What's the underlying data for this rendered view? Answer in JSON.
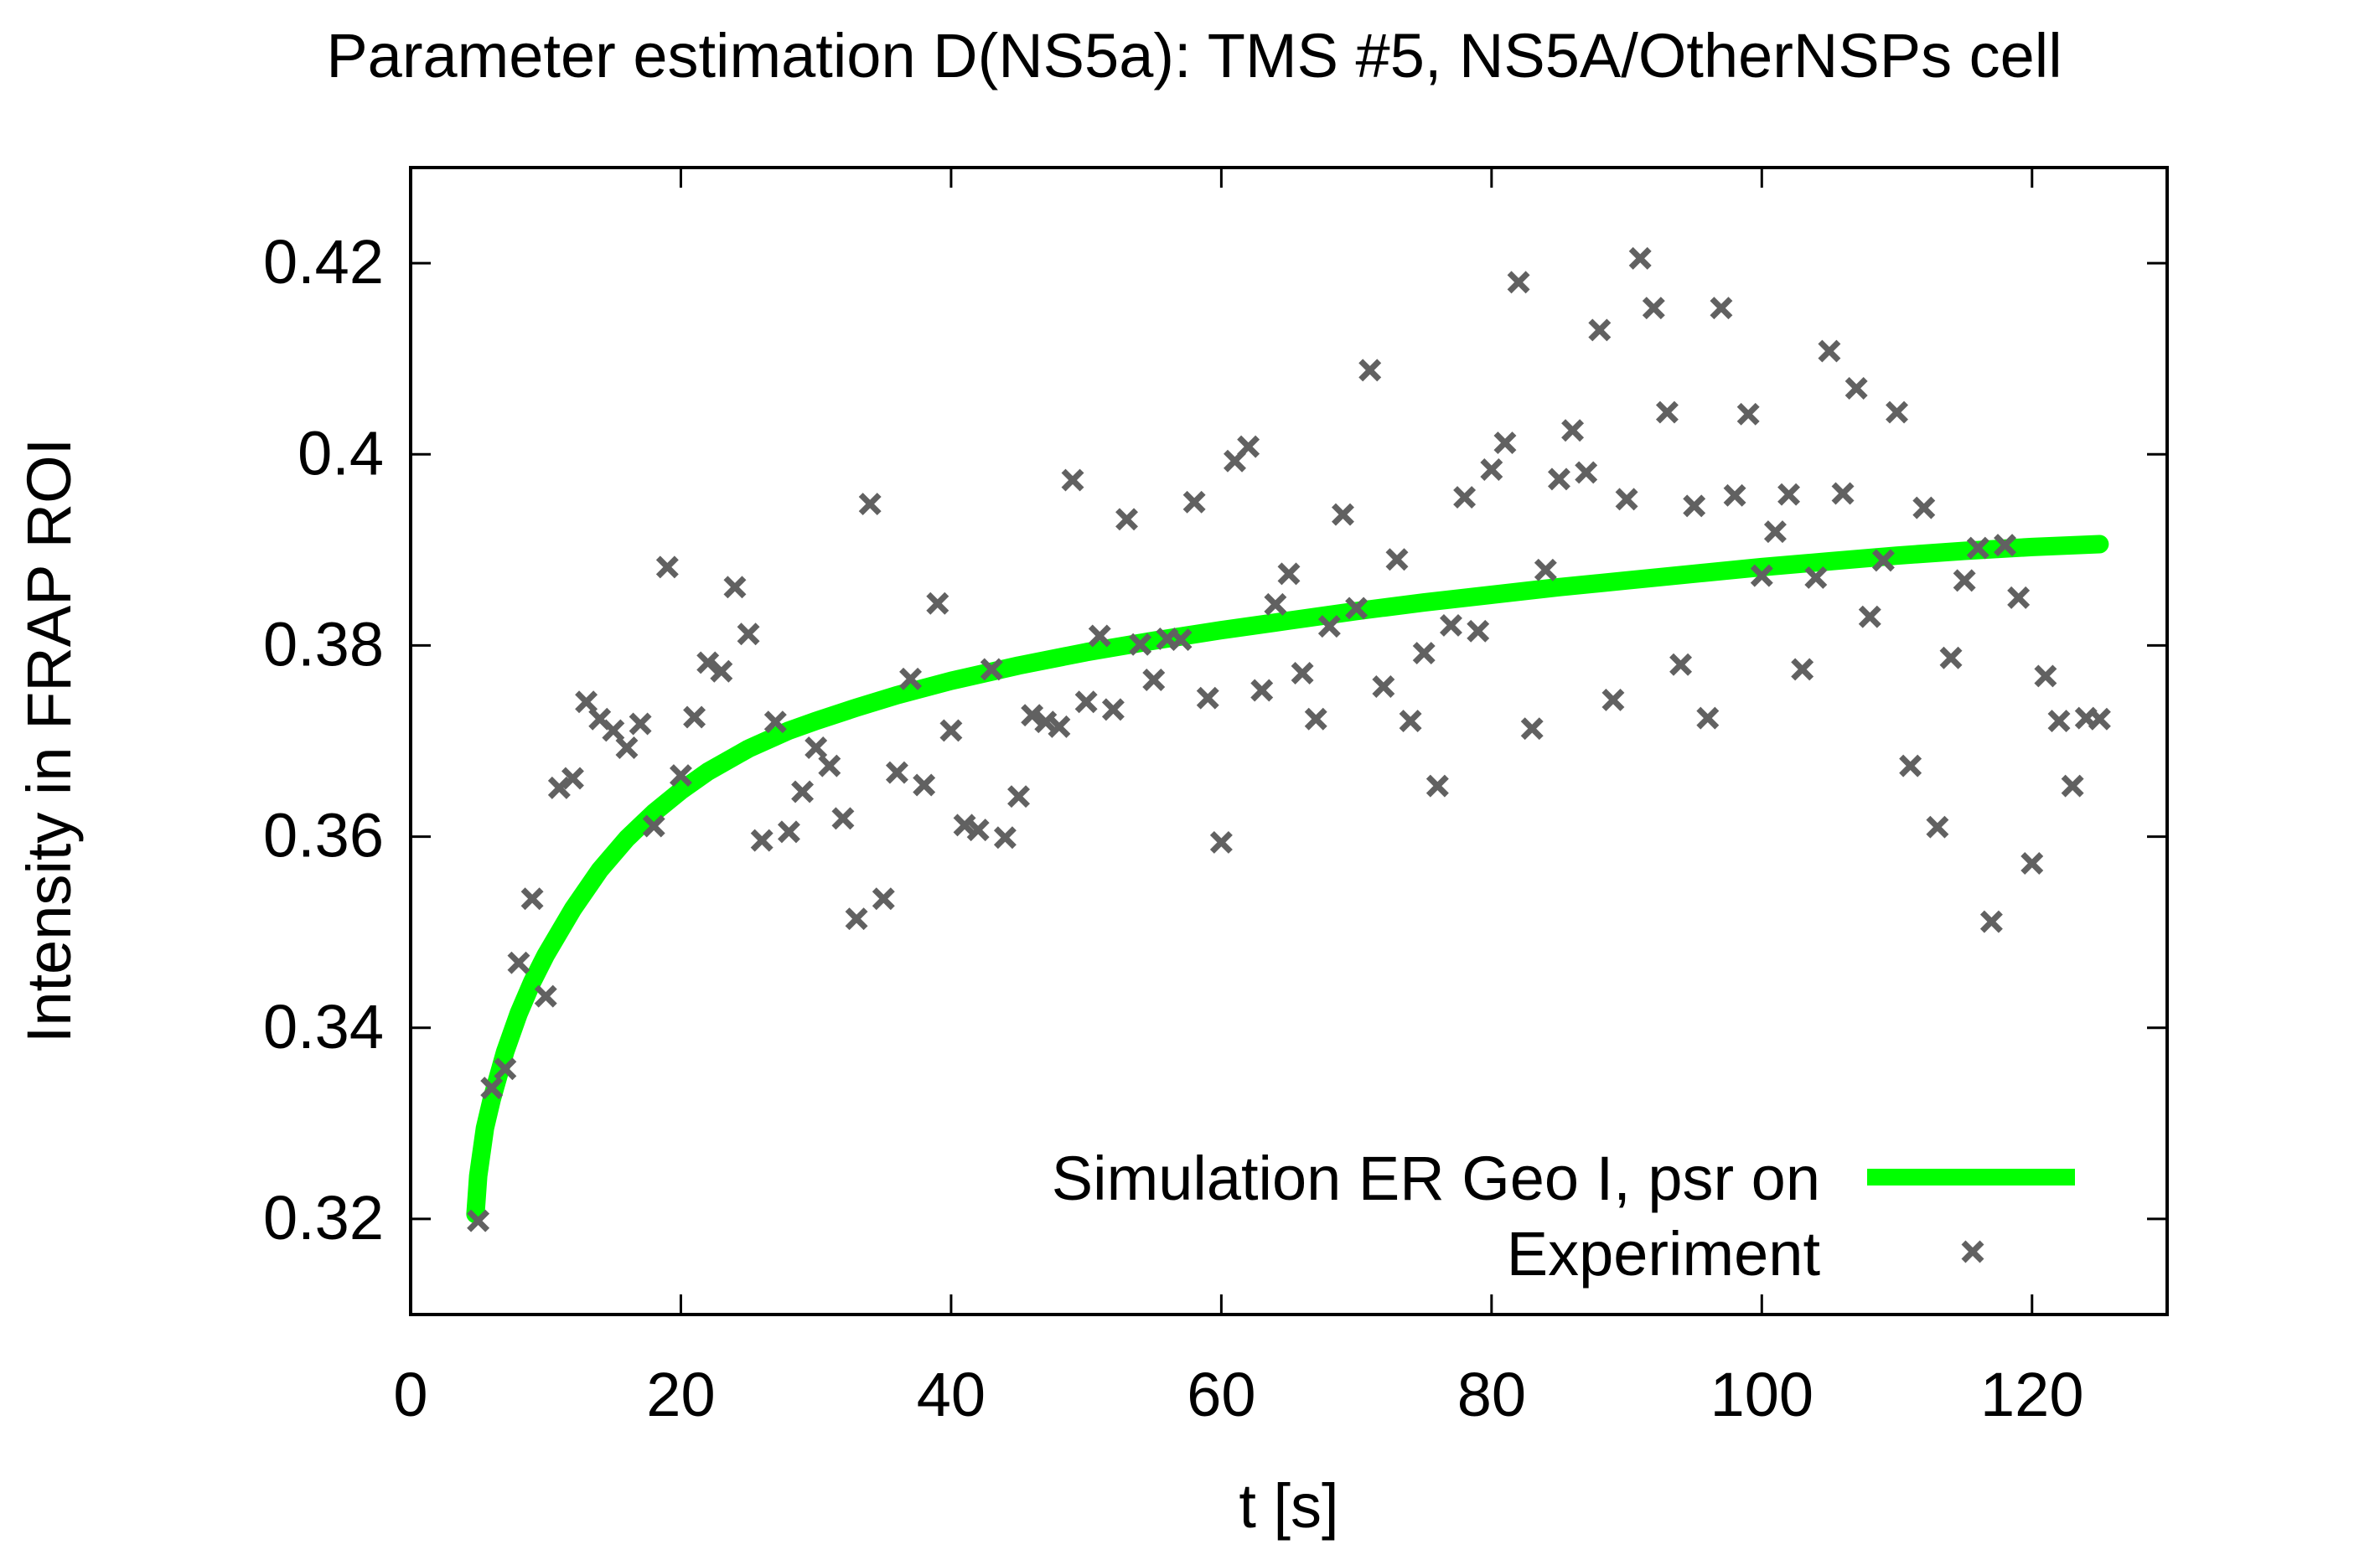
{
  "chart_data": {
    "type": "scatter",
    "title": "Parameter estimation D(NS5a): TMS #5, NS5A/OtherNSPs cell",
    "xlabel": "t [s]",
    "ylabel": "Intensity in FRAP ROI",
    "xlim": [
      0,
      130
    ],
    "ylim": [
      0.31,
      0.43
    ],
    "xticks": [
      0,
      20,
      40,
      60,
      80,
      100,
      120
    ],
    "yticks": [
      0.32,
      0.34,
      0.36,
      0.38,
      0.4,
      0.42
    ],
    "xtick_labels": [
      "0",
      "20",
      "40",
      "60",
      "80",
      "100",
      "120"
    ],
    "ytick_labels": [
      "0.32",
      "0.34",
      "0.36",
      "0.38",
      "0.4",
      "0.42"
    ],
    "legend_position": "bottom-right",
    "series": [
      {
        "name": "Simulation ER Geo I, psr on",
        "type": "line",
        "color": "#00ff00",
        "x": [
          4.8,
          5.0,
          5.5,
          6.0,
          7.0,
          8.0,
          9.0,
          10.0,
          12.0,
          14.0,
          16.0,
          18.0,
          20.0,
          22.0,
          25.0,
          28.0,
          30.0,
          33.0,
          36.0,
          40.0,
          45.0,
          50.0,
          55.0,
          60.0,
          65.0,
          70.0,
          75.0,
          80.0,
          85.0,
          90.0,
          95.0,
          100.0,
          105.0,
          110.0,
          115.0,
          120.0,
          125.0
        ],
        "y": [
          0.3205,
          0.3245,
          0.3295,
          0.3325,
          0.3375,
          0.3415,
          0.3448,
          0.3476,
          0.3524,
          0.3565,
          0.3598,
          0.3625,
          0.3648,
          0.3668,
          0.3692,
          0.3711,
          0.3721,
          0.3735,
          0.3748,
          0.3763,
          0.3779,
          0.3793,
          0.3805,
          0.3816,
          0.3826,
          0.3836,
          0.3845,
          0.3853,
          0.3861,
          0.3868,
          0.3875,
          0.3882,
          0.3888,
          0.3894,
          0.3899,
          0.3903,
          0.3906
        ]
      },
      {
        "name": "Experiment",
        "type": "scatter",
        "color": "#616161",
        "marker": "x",
        "x": [
          5.0,
          6.0,
          7.0,
          8.0,
          9.0,
          10.0,
          11.0,
          12.0,
          13.0,
          14.0,
          15.0,
          16.0,
          17.0,
          18.0,
          19.0,
          20.0,
          21.0,
          22.0,
          23.0,
          24.0,
          25.0,
          26.0,
          27.0,
          28.0,
          29.0,
          30.0,
          31.0,
          32.0,
          33.0,
          34.0,
          35.0,
          36.0,
          37.0,
          38.0,
          39.0,
          40.0,
          41.0,
          42.0,
          43.0,
          44.0,
          45.0,
          46.0,
          47.0,
          48.0,
          49.0,
          50.0,
          51.0,
          52.0,
          53.0,
          54.0,
          55.0,
          56.0,
          57.0,
          58.0,
          59.0,
          60.0,
          61.0,
          62.0,
          63.0,
          64.0,
          65.0,
          66.0,
          67.0,
          68.0,
          69.0,
          70.0,
          71.0,
          72.0,
          73.0,
          74.0,
          75.0,
          76.0,
          77.0,
          78.0,
          79.0,
          80.0,
          81.0,
          82.0,
          83.0,
          84.0,
          85.0,
          86.0,
          87.0,
          88.0,
          89.0,
          90.0,
          91.0,
          92.0,
          93.0,
          94.0,
          95.0,
          96.0,
          97.0,
          98.0,
          99.0,
          100.0,
          101.0,
          102.0,
          103.0,
          104.0,
          105.0,
          106.0,
          107.0,
          108.0,
          109.0,
          110.0,
          111.0,
          112.0,
          113.0,
          114.0,
          115.0,
          116.0,
          117.0,
          118.0,
          119.0,
          120.0,
          121.0,
          122.0,
          123.0,
          124.0,
          125.0
        ],
        "y": [
          0.3198,
          0.3337,
          0.3357,
          0.3468,
          0.3535,
          0.3433,
          0.3651,
          0.3661,
          0.3741,
          0.3723,
          0.3711,
          0.3693,
          0.3718,
          0.3611,
          0.3882,
          0.3664,
          0.3725,
          0.3782,
          0.3773,
          0.3861,
          0.3812,
          0.3596,
          0.372,
          0.3605,
          0.3647,
          0.3693,
          0.3674,
          0.3619,
          0.3514,
          0.3948,
          0.3535,
          0.3667,
          0.3765,
          0.3654,
          0.3844,
          0.3711,
          0.3612,
          0.3607,
          0.3775,
          0.3599,
          0.3642,
          0.3727,
          0.372,
          0.3715,
          0.3973,
          0.3741,
          0.381,
          0.3733,
          0.3932,
          0.3801,
          0.3764,
          0.3807,
          0.3806,
          0.395,
          0.3745,
          0.3594,
          0.3993,
          0.4008,
          0.3753,
          0.3843,
          0.3875,
          0.3771,
          0.3723,
          0.382,
          0.3937,
          0.3839,
          0.4088,
          0.3757,
          0.389,
          0.3721,
          0.3792,
          0.3653,
          0.3821,
          0.3955,
          0.3815,
          0.3984,
          0.4012,
          0.418,
          0.3713,
          0.3879,
          0.3974,
          0.4025,
          0.3981,
          0.413,
          0.3743,
          0.3953,
          0.4205,
          0.4153,
          0.4044,
          0.378,
          0.3946,
          0.3724,
          0.4153,
          0.3957,
          0.4042,
          0.3873,
          0.3919,
          0.3958,
          0.3775,
          0.3871,
          0.4108,
          0.3959,
          0.4069,
          0.383,
          0.3889,
          0.4044,
          0.3674,
          0.3944,
          0.361,
          0.3787,
          0.3868,
          0.3902,
          0.3511,
          0.3905,
          0.385,
          0.3572,
          0.3768,
          0.3721,
          0.3653,
          0.3724,
          0.3723
        ]
      }
    ]
  }
}
